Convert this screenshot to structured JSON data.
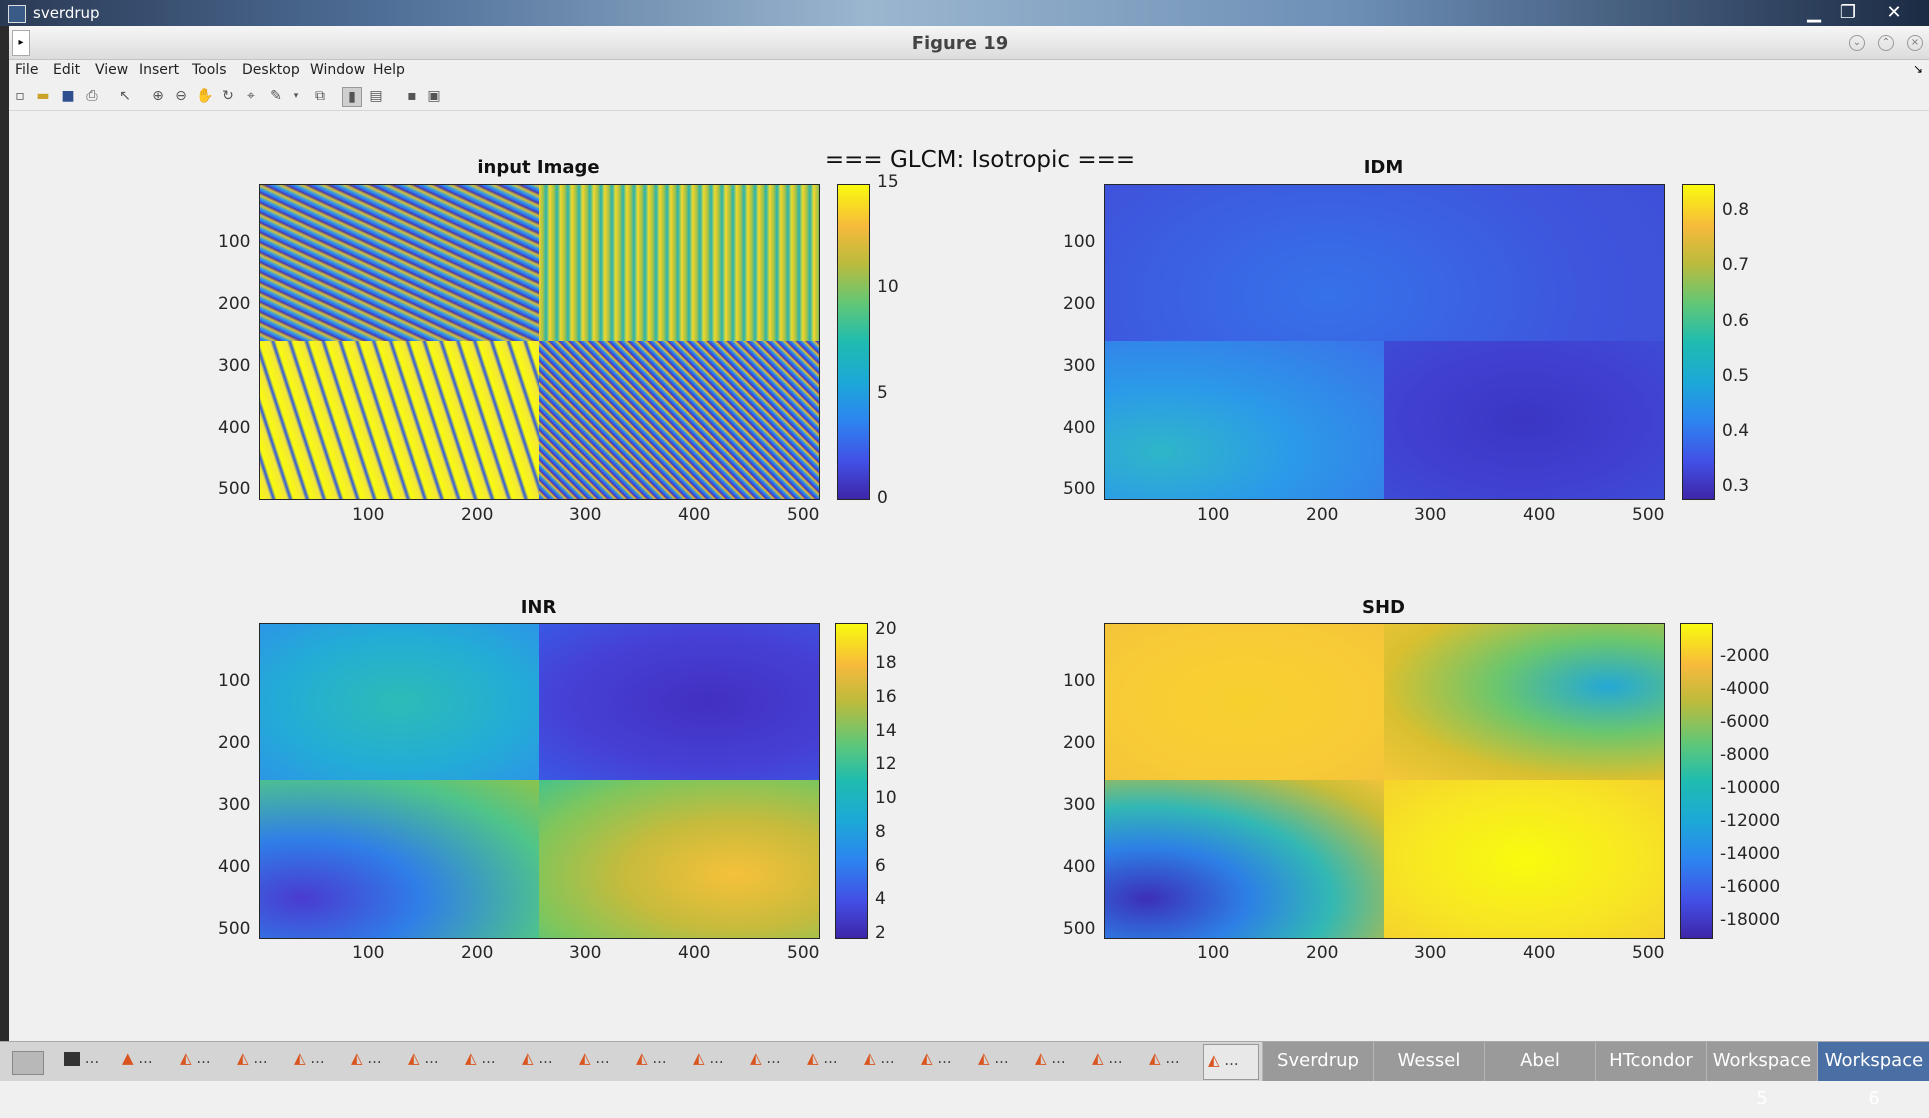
{
  "os_window": {
    "title": "sverdrup",
    "minimize": "▁",
    "restore": "❐",
    "close": "✕"
  },
  "figure": {
    "title": "Figure 19",
    "super_title": "=== GLCM: Isotropic ==="
  },
  "menu": [
    "File",
    "Edit",
    "View",
    "Insert",
    "Tools",
    "Desktop",
    "Window",
    "Help"
  ],
  "toolbar_icons": [
    "new-figure-icon",
    "open-icon",
    "save-icon",
    "print-icon",
    "pointer-icon",
    "zoom-in-icon",
    "zoom-out-icon",
    "pan-icon",
    "rotate-icon",
    "data-cursor-icon",
    "brush-icon",
    "link-icon",
    "colorbar-icon",
    "legend-icon",
    "hide-tools-icon",
    "dock-icon"
  ],
  "chart_data": [
    {
      "type": "heatmap",
      "title": "input Image",
      "xticks": [
        "100",
        "200",
        "300",
        "400",
        "500"
      ],
      "yticks": [
        "100",
        "200",
        "300",
        "400",
        "500"
      ],
      "colorbar": {
        "ticks": [
          "15",
          "10",
          "5",
          "0"
        ],
        "range": [
          0,
          15
        ]
      },
      "quadrants": [
        [
          "mixed",
          "high"
        ],
        [
          "high",
          "mixed"
        ]
      ]
    },
    {
      "type": "heatmap",
      "title": "IDM",
      "xticks": [
        "100",
        "200",
        "300",
        "400",
        "500"
      ],
      "yticks": [
        "100",
        "200",
        "300",
        "400",
        "500"
      ],
      "colorbar": {
        "ticks": [
          "0.8",
          "0.7",
          "0.6",
          "0.5",
          "0.4",
          "0.3"
        ],
        "range": [
          0.28,
          0.85
        ]
      }
    },
    {
      "type": "heatmap",
      "title": "INR",
      "xticks": [
        "100",
        "200",
        "300",
        "400",
        "500"
      ],
      "yticks": [
        "100",
        "200",
        "300",
        "400",
        "500"
      ],
      "colorbar": {
        "ticks": [
          "20",
          "18",
          "16",
          "14",
          "12",
          "10",
          "8",
          "6",
          "4",
          "2"
        ],
        "range": [
          2,
          20.5
        ]
      }
    },
    {
      "type": "heatmap",
      "title": "SHD",
      "xticks": [
        "100",
        "200",
        "300",
        "400",
        "500"
      ],
      "yticks": [
        "100",
        "200",
        "300",
        "400",
        "500"
      ],
      "colorbar": {
        "ticks": [
          "-2000",
          "-4000",
          "-6000",
          "-8000",
          "-10000",
          "-12000",
          "-14000",
          "-16000",
          "-18000"
        ],
        "range": [
          -19000,
          0
        ]
      }
    }
  ],
  "taskbar": {
    "item_label": "...",
    "workspaces": [
      "Sverdrup",
      "Wessel",
      "Abel",
      "HTcondor",
      "Workspace 5",
      "Workspace 6"
    ]
  }
}
